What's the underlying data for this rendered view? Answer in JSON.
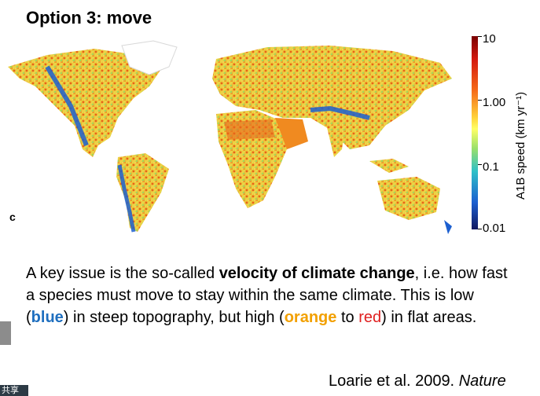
{
  "slide": {
    "title": "Option 3: move",
    "panel_letter": "c",
    "colorbar": {
      "axis_label": "A1B speed (km yr⁻¹)",
      "ticks": [
        "10",
        "1.00",
        "0.1",
        "0.01"
      ],
      "colors": [
        "#7a0000",
        "#d41a10",
        "#f56a18",
        "#ffd23a",
        "#9be06a",
        "#2ec0c8",
        "#1c5fd0",
        "#101860"
      ]
    },
    "body": {
      "p1": "A key issue is the so-called ",
      "p2": "velocity of climate change",
      "p3": ", i.e. how fast a species must move to stay within the same climate. This is low (",
      "p4": "blue",
      "p5": ") in steep topography, but high (",
      "p6": "orange",
      "p7": " to ",
      "p8": "red",
      "p9": ") in flat areas."
    },
    "citation": {
      "authors": "Loarie et al. 2009. ",
      "journal": "Nature"
    },
    "share_label": "共享"
  }
}
